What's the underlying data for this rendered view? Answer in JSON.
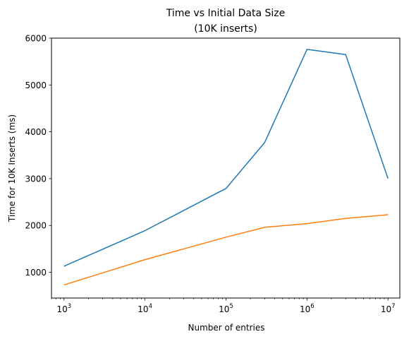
{
  "chart_data": {
    "type": "line",
    "title": "Time vs Initial Data Size",
    "subtitle": "(10K inserts)",
    "xlabel": "Number of entries",
    "ylabel": "Time for 10K Inserts (ms)",
    "xscale": "log",
    "xlim": [
      700,
      14000000
    ],
    "ylim": [
      450,
      6000
    ],
    "grid": false,
    "x_ticks": [
      {
        "base": "10",
        "exp": "3",
        "value": 1000
      },
      {
        "base": "10",
        "exp": "4",
        "value": 10000
      },
      {
        "base": "10",
        "exp": "5",
        "value": 100000
      },
      {
        "base": "10",
        "exp": "6",
        "value": 1000000
      },
      {
        "base": "10",
        "exp": "7",
        "value": 10000000
      }
    ],
    "y_ticks": [
      {
        "label": "1000",
        "value": 1000
      },
      {
        "label": "2000",
        "value": 2000
      },
      {
        "label": "3000",
        "value": 3000
      },
      {
        "label": "4000",
        "value": 4000
      },
      {
        "label": "5000",
        "value": 5000
      },
      {
        "label": "6000",
        "value": 6000
      }
    ],
    "x": [
      1000,
      10000,
      100000,
      300000,
      1000000,
      3000000,
      10000000
    ],
    "series": [
      {
        "color": "#1f77b4",
        "values": [
          1130,
          1890,
          2790,
          3770,
          5760,
          5650,
          3000
        ]
      },
      {
        "color": "#ff7f0e",
        "values": [
          730,
          1270,
          1750,
          1960,
          2040,
          2150,
          2230
        ]
      }
    ]
  }
}
